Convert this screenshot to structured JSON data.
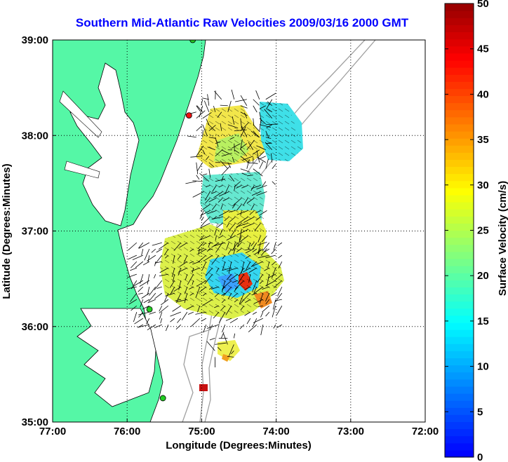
{
  "chart_data": {
    "type": "map",
    "title": "Southern Mid-Atlantic Raw Velocities 2009/03/16 2000 GMT",
    "xlabel": "Longitude (Degrees:Minutes)",
    "ylabel": "Latitude (Degrees:Minutes)",
    "xlim": [
      -77,
      -72
    ],
    "ylim": [
      35,
      39
    ],
    "x_ticks": [
      {
        "value": -77,
        "label": "77:00"
      },
      {
        "value": -76,
        "label": "76:00"
      },
      {
        "value": -75,
        "label": "75:00"
      },
      {
        "value": -74,
        "label": "74:00"
      },
      {
        "value": -73,
        "label": "73:00"
      },
      {
        "value": -72,
        "label": "72:00"
      }
    ],
    "y_ticks": [
      {
        "value": 35,
        "label": "35:00"
      },
      {
        "value": 36,
        "label": "36:00"
      },
      {
        "value": 37,
        "label": "37:00"
      },
      {
        "value": 38,
        "label": "38:00"
      },
      {
        "value": 39,
        "label": "39:00"
      }
    ],
    "grid": "dotted",
    "colorbar": {
      "label": "Surface Velocity (cm/s)",
      "min": 0,
      "max": 50,
      "ticks": [
        {
          "value": 0,
          "label": "0"
        },
        {
          "value": 5,
          "label": "5"
        },
        {
          "value": 10,
          "label": "10"
        },
        {
          "value": 15,
          "label": "15"
        },
        {
          "value": 20,
          "label": "20"
        },
        {
          "value": 25,
          "label": "25"
        },
        {
          "value": 30,
          "label": "30"
        },
        {
          "value": 35,
          "label": "35"
        },
        {
          "value": 40,
          "label": "40"
        },
        {
          "value": 45,
          "label": "45"
        },
        {
          "value": 50,
          "label": "50"
        }
      ],
      "colormap": "jet",
      "placement": "right"
    },
    "colors": {
      "land": "#55f7a6",
      "title": "#0000ff",
      "bathymetry": "#a0a0a0",
      "station_green": "#22cc22",
      "station_red": "#ee1111"
    },
    "stations": [
      {
        "lon": -75.12,
        "lat": 39.0,
        "color": "green"
      },
      {
        "lon": -75.17,
        "lat": 38.21,
        "color": "red"
      },
      {
        "lon": -75.7,
        "lat": 36.18,
        "color": "green"
      },
      {
        "lon": -75.52,
        "lat": 35.25,
        "color": "green"
      }
    ],
    "velocity_clusters": [
      {
        "region": "north",
        "lon": [
          -75.1,
          -74.0
        ],
        "lat": [
          37.5,
          38.4
        ],
        "speed": [
          5,
          30
        ],
        "direction": "variable"
      },
      {
        "region": "central",
        "lon": [
          -75.0,
          -74.1
        ],
        "lat": [
          36.8,
          37.5
        ],
        "speed": [
          10,
          28
        ],
        "direction": "southwest"
      },
      {
        "region": "south",
        "lon": [
          -75.9,
          -73.9
        ],
        "lat": [
          36.0,
          36.9
        ],
        "speed": [
          8,
          40
        ],
        "direction": "southwest"
      },
      {
        "region": "hatteras",
        "lon": [
          -74.85,
          -74.55
        ],
        "lat": [
          35.65,
          35.9
        ],
        "speed": [
          15,
          35
        ],
        "direction": "variable"
      }
    ]
  }
}
